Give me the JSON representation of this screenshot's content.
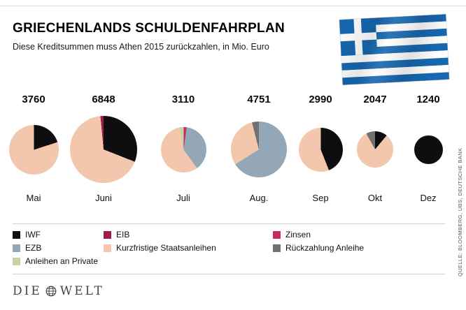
{
  "header": {
    "title": "GRIECHENLANDS SCHULDENFAHRPLAN",
    "subtitle": "Diese Kreditsummen muss Athen 2015 zurückzahlen, in Mio. Euro"
  },
  "source": "QUELLE: BLOOMBERG, UBS, DEUTSCHE BANK",
  "logo": {
    "left": "DIE",
    "right": "WELT"
  },
  "flag": {
    "blue": "#1668b0",
    "white": "#ffffff"
  },
  "chart_data": {
    "type": "pie",
    "title": "GRIECHENLANDS SCHULDENFAHRPLAN",
    "subtitle": "Diese Kreditsummen muss Athen 2015 zurückzahlen, in Mio. Euro",
    "unit": "Mio. Euro",
    "legend_position": "bottom",
    "categories": [
      {
        "name": "IWF",
        "color": "#0e0e10"
      },
      {
        "name": "EZB",
        "color": "#93a7b7"
      },
      {
        "name": "Anleihen an Private",
        "color": "#c9d2a0"
      },
      {
        "name": "EIB",
        "color": "#9e1b4e"
      },
      {
        "name": "Kurzfristige Staatsanleihen",
        "color": "#f3c7ae"
      },
      {
        "name": "Zinsen",
        "color": "#c42a60"
      },
      {
        "name": "Rückzahlung Anleihe",
        "color": "#707070"
      }
    ],
    "pies": [
      {
        "month": "Mai",
        "total": 3760,
        "segments": [
          {
            "category": "IWF",
            "pct": 20
          },
          {
            "category": "Kurzfristige Staatsanleihen",
            "pct": 80
          }
        ]
      },
      {
        "month": "Juni",
        "total": 6848,
        "segments": [
          {
            "category": "IWF",
            "pct": 31
          },
          {
            "category": "Kurzfristige Staatsanleihen",
            "pct": 67.5
          },
          {
            "category": "EIB",
            "pct": 1.5
          }
        ]
      },
      {
        "month": "Juli",
        "total": 3110,
        "segments": [
          {
            "category": "Zinsen",
            "pct": 2
          },
          {
            "category": "EZB",
            "pct": 38
          },
          {
            "category": "Kurzfristige Staatsanleihen",
            "pct": 57
          },
          {
            "category": "Anleihen an Private",
            "pct": 3
          }
        ]
      },
      {
        "month": "Aug.",
        "total": 4751,
        "segments": [
          {
            "category": "EZB",
            "pct": 66
          },
          {
            "category": "Kurzfristige Staatsanleihen",
            "pct": 30
          },
          {
            "category": "Rückzahlung Anleihe",
            "pct": 4
          }
        ]
      },
      {
        "month": "Sep",
        "total": 2990,
        "segments": [
          {
            "category": "IWF",
            "pct": 44
          },
          {
            "category": "Kurzfristige Staatsanleihen",
            "pct": 56
          }
        ]
      },
      {
        "month": "Okt",
        "total": 2047,
        "segments": [
          {
            "category": "IWF",
            "pct": 11
          },
          {
            "category": "Kurzfristige Staatsanleihen",
            "pct": 81
          },
          {
            "category": "Rückzahlung Anleihe",
            "pct": 8
          }
        ]
      },
      {
        "month": "Dez",
        "total": 1240,
        "segments": [
          {
            "category": "IWF",
            "pct": 100
          }
        ]
      }
    ]
  },
  "legend": {
    "columns": [
      [
        "IWF",
        "EZB",
        "Anleihen an Private"
      ],
      [
        "EIB",
        "Kurzfristige Staatsanleihen"
      ],
      [
        "Zinsen",
        "Rückzahlung Anleihe"
      ]
    ]
  }
}
